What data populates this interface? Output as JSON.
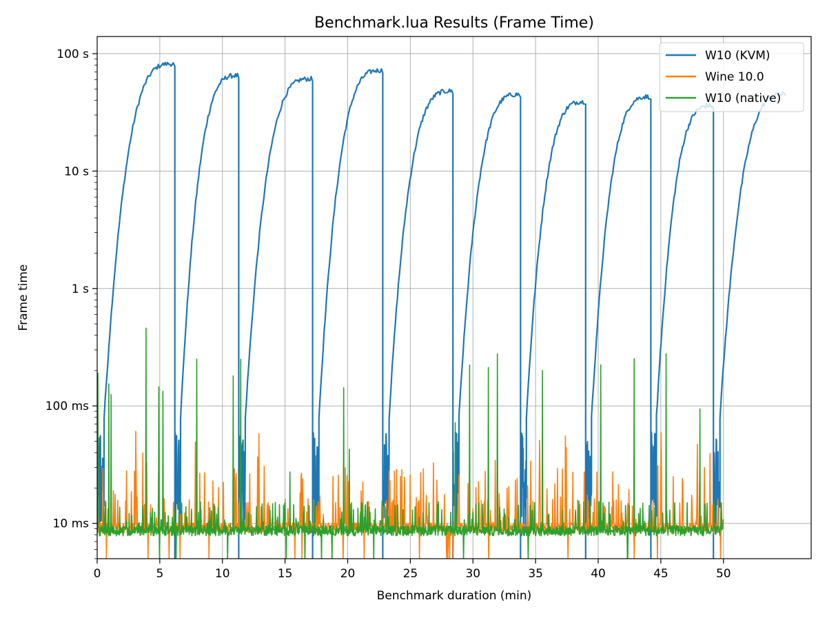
{
  "chart_data": {
    "type": "line",
    "title": "Benchmark.lua Results (Frame Time)",
    "xlabel": "Benchmark duration (min)",
    "ylabel": "Frame time",
    "xscale": "linear",
    "yscale": "log",
    "xlim": [
      0,
      57
    ],
    "ylim": [
      0.005,
      140
    ],
    "grid": true,
    "legend_position": "top-right",
    "x_ticks": [
      0,
      5,
      10,
      15,
      20,
      25,
      30,
      35,
      40,
      45,
      50
    ],
    "x_tick_labels": [
      "0",
      "5",
      "10",
      "15",
      "20",
      "25",
      "30",
      "35",
      "40",
      "45",
      "50"
    ],
    "y_ticks": [
      0.01,
      0.1,
      1,
      10,
      100
    ],
    "y_tick_labels": [
      "10 ms",
      "100 ms",
      "1 s",
      "10 s",
      "100 s"
    ],
    "series": [
      {
        "name": "W10 (KVM)",
        "color": "#1f77b4",
        "style": "sawtooth",
        "cycles": [
          {
            "start": 0.0,
            "end": 6.2,
            "peak": 82
          },
          {
            "start": 6.2,
            "end": 11.3,
            "peak": 65
          },
          {
            "start": 11.3,
            "end": 17.2,
            "peak": 61
          },
          {
            "start": 17.2,
            "end": 22.8,
            "peak": 72
          },
          {
            "start": 22.8,
            "end": 28.4,
            "peak": 48
          },
          {
            "start": 28.4,
            "end": 33.8,
            "peak": 45
          },
          {
            "start": 33.8,
            "end": 39.0,
            "peak": 39
          },
          {
            "start": 39.0,
            "end": 44.2,
            "peak": 43
          },
          {
            "start": 44.2,
            "end": 49.2,
            "peak": 36
          },
          {
            "start": 49.2,
            "end": 55.0,
            "peak": 45
          }
        ],
        "baseline_range": [
          0.008,
          0.06
        ]
      },
      {
        "name": "Wine 10.0",
        "color": "#ff7f0e",
        "style": "noise",
        "x_range": [
          0,
          50
        ],
        "baseline": 0.009,
        "typical_max": 0.025,
        "max": 0.085
      },
      {
        "name": "W10 (native)",
        "color": "#2ca02c",
        "style": "noise",
        "x_range": [
          0,
          50
        ],
        "baseline": 0.0085,
        "typical_max": 0.013,
        "max": 0.46,
        "spikes": [
          {
            "x": 3.9,
            "y": 0.46
          },
          {
            "x": 1.1,
            "y": 0.125
          },
          {
            "x": 0.05,
            "y": 0.19
          }
        ]
      }
    ]
  }
}
